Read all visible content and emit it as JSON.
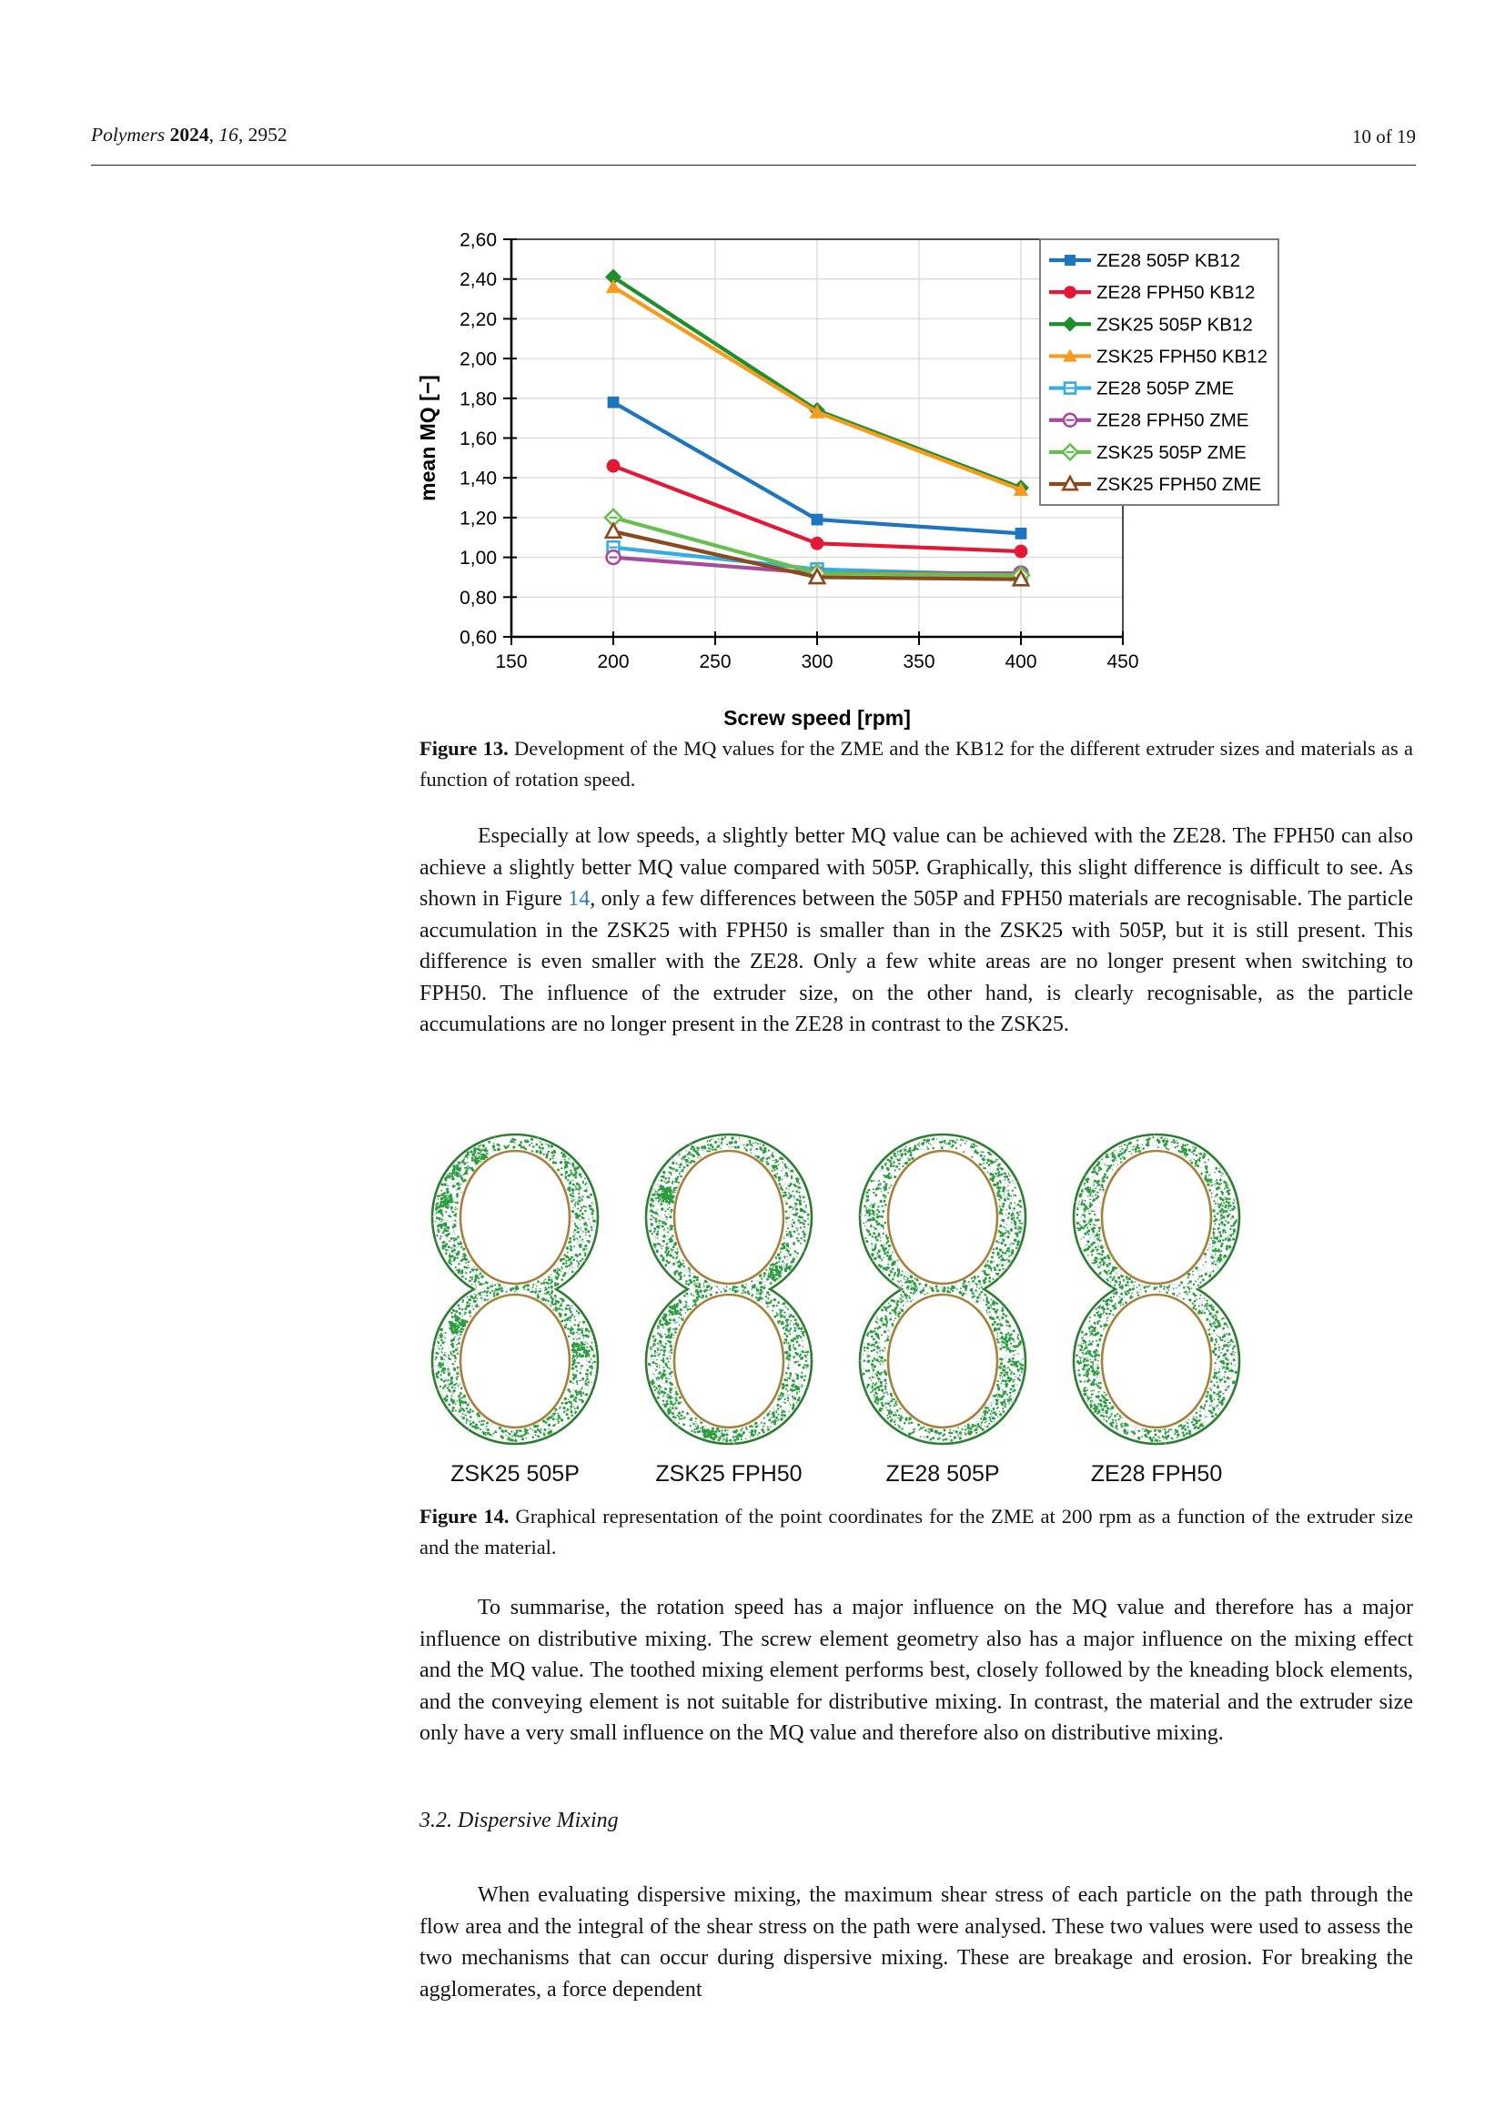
{
  "header": {
    "journal": "Polymers",
    "sep1": " ",
    "year": "2024",
    "sep2": ", ",
    "volume": "16",
    "sep3": ", 2952",
    "page_indicator": "10 of 19"
  },
  "figure13": {
    "caption_label": "Figure 13.",
    "caption_text": " Development of the MQ values for the ZME and the KB12 for the different extruder sizes and materials as a function of rotation speed."
  },
  "para1": {
    "before": "Especially at low speeds, a slightly better MQ value can be achieved with the ZE28. The FPH50 can also achieve a slightly better MQ value compared with 505P. Graphically, this slight difference is difficult to see. As shown in Figure ",
    "link": "14",
    "after": ", only a few differences between the 505P and FPH50 materials are recognisable. The particle accumulation in the ZSK25 with FPH50 is smaller than in the ZSK25 with 505P, but it is still present. This difference is even smaller with the ZE28. Only a few white areas are no longer present when switching to FPH50. The influence of the extruder size, on the other hand, is clearly recognisable, as the particle accumulations are no longer present in the ZE28 in contrast to the ZSK25."
  },
  "figure14": {
    "labels": [
      "ZSK25 505P",
      "ZSK25 FPH50",
      "ZE28 505P",
      "ZE28 FPH50"
    ],
    "caption_label": "Figure 14.",
    "caption_text": " Graphical representation of the point coordinates for the ZME at 200 rpm as a function of the extruder size and the material.",
    "outline_color": "#2E7D32",
    "dot_color": "#2E9C41",
    "web_color": "#B5CBDD",
    "hole_color": "#A5813C"
  },
  "para2": "To summarise, the rotation speed has a major influence on the MQ value and therefore has a major influence on distributive mixing. The screw element geometry also has a major influence on the mixing effect and the MQ value. The toothed mixing element performs best, closely followed by the kneading block elements, and the conveying element is not suitable for distributive mixing. In contrast, the material and the extruder size only have a very small influence on the MQ value and therefore also on distributive mixing.",
  "section_heading": "3.2. Dispersive Mixing",
  "para3": "When evaluating dispersive mixing, the maximum shear stress of each particle on the path through the flow area and the integral of the shear stress on the path were analysed. These two values were used to assess the two mechanisms that can occur during dispersive mixing. These are breakage and erosion. For breaking the agglomerates, a force dependent",
  "chart_data": {
    "type": "line",
    "title": "",
    "xlabel": "Screw speed [rpm]",
    "ylabel": "mean MQ [−]",
    "x": [
      200,
      300,
      400
    ],
    "xlim": [
      150,
      450
    ],
    "xticks": [
      150,
      200,
      250,
      300,
      350,
      400,
      450
    ],
    "xtick_labels": [
      "150",
      "200",
      "250",
      "300",
      "350",
      "400",
      "450"
    ],
    "ylim": [
      0.6,
      2.6
    ],
    "yticks": [
      0.6,
      0.8,
      1.0,
      1.2,
      1.4,
      1.6,
      1.8,
      2.0,
      2.2,
      2.4,
      2.6
    ],
    "ytick_labels": [
      "0,60",
      "0,80",
      "1,00",
      "1,20",
      "1,40",
      "1,60",
      "1,80",
      "2,00",
      "2,20",
      "2,40",
      "2,60"
    ],
    "grid": true,
    "legend_position": "top-right",
    "series": [
      {
        "name": "ZE28 505P KB12",
        "color": "#1F74BE",
        "marker": "square",
        "filled": true,
        "values": [
          1.78,
          1.19,
          1.12
        ]
      },
      {
        "name": "ZE28 FPH50 KB12",
        "color": "#E31837",
        "marker": "circle",
        "filled": true,
        "values": [
          1.46,
          1.07,
          1.03
        ]
      },
      {
        "name": "ZSK25 505P KB12",
        "color": "#1E8E2E",
        "marker": "diamond",
        "filled": true,
        "values": [
          2.41,
          1.74,
          1.35
        ]
      },
      {
        "name": "ZSK25 FPH50 KB12",
        "color": "#F59C1E",
        "marker": "triangle",
        "filled": true,
        "values": [
          2.36,
          1.73,
          1.34
        ]
      },
      {
        "name": "ZE28 505P ZME",
        "color": "#36ACE2",
        "marker": "square",
        "filled": false,
        "values": [
          1.05,
          0.94,
          0.91
        ]
      },
      {
        "name": "ZE28 FPH50 ZME",
        "color": "#A74B9F",
        "marker": "circle",
        "filled": false,
        "values": [
          1.0,
          0.92,
          0.92
        ]
      },
      {
        "name": "ZSK25 505P ZME",
        "color": "#66C04F",
        "marker": "diamond",
        "filled": false,
        "values": [
          1.2,
          0.92,
          0.91
        ]
      },
      {
        "name": "ZSK25 FPH50 ZME",
        "color": "#8B4A1E",
        "marker": "triangle",
        "filled": false,
        "values": [
          1.13,
          0.9,
          0.89
        ]
      }
    ]
  }
}
